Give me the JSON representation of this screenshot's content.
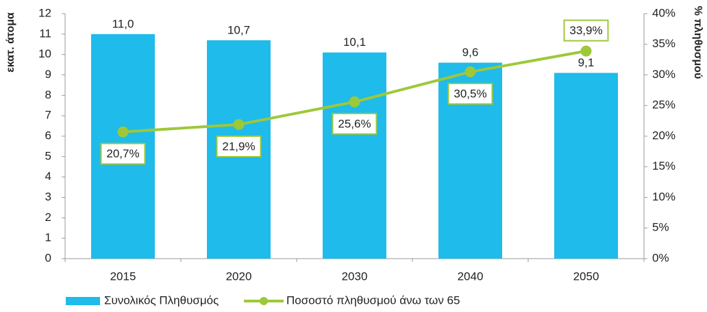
{
  "chart_data": {
    "type": "bar",
    "categories": [
      "2015",
      "2020",
      "2030",
      "2040",
      "2050"
    ],
    "y_label": "εκατ. άτομα",
    "y2_label": "% πληθυσμού",
    "ylim": [
      0,
      12
    ],
    "yticks": [
      0,
      1,
      2,
      3,
      4,
      5,
      6,
      7,
      8,
      9,
      10,
      11,
      12
    ],
    "y2lim": [
      0,
      40
    ],
    "y2ticks": [
      {
        "value": 0,
        "label": "0%"
      },
      {
        "value": 5,
        "label": "5%"
      },
      {
        "value": 10,
        "label": "10%"
      },
      {
        "value": 15,
        "label": "15%"
      },
      {
        "value": 20,
        "label": "20%"
      },
      {
        "value": 25,
        "label": "25%"
      },
      {
        "value": 30,
        "label": "30%"
      },
      {
        "value": 35,
        "label": "35%"
      },
      {
        "value": 40,
        "label": "40%"
      }
    ],
    "series": [
      {
        "name": "Συνολικός Πληθυσμός",
        "type": "bar",
        "color": "#1fbbea",
        "values": [
          11.0,
          10.7,
          10.1,
          9.6,
          9.1
        ],
        "value_labels": [
          "11,0",
          "10,7",
          "10,1",
          "9,6",
          "9,1"
        ]
      },
      {
        "name": "Ποσοστό πληθυσμού άνω των 65",
        "type": "line",
        "axis": "y2",
        "color": "#9dc83a",
        "values": [
          20.7,
          21.9,
          25.6,
          30.5,
          33.9
        ],
        "value_labels": [
          "20,7%",
          "21,9%",
          "25,6%",
          "30,5%",
          "33,9%"
        ]
      }
    ]
  }
}
